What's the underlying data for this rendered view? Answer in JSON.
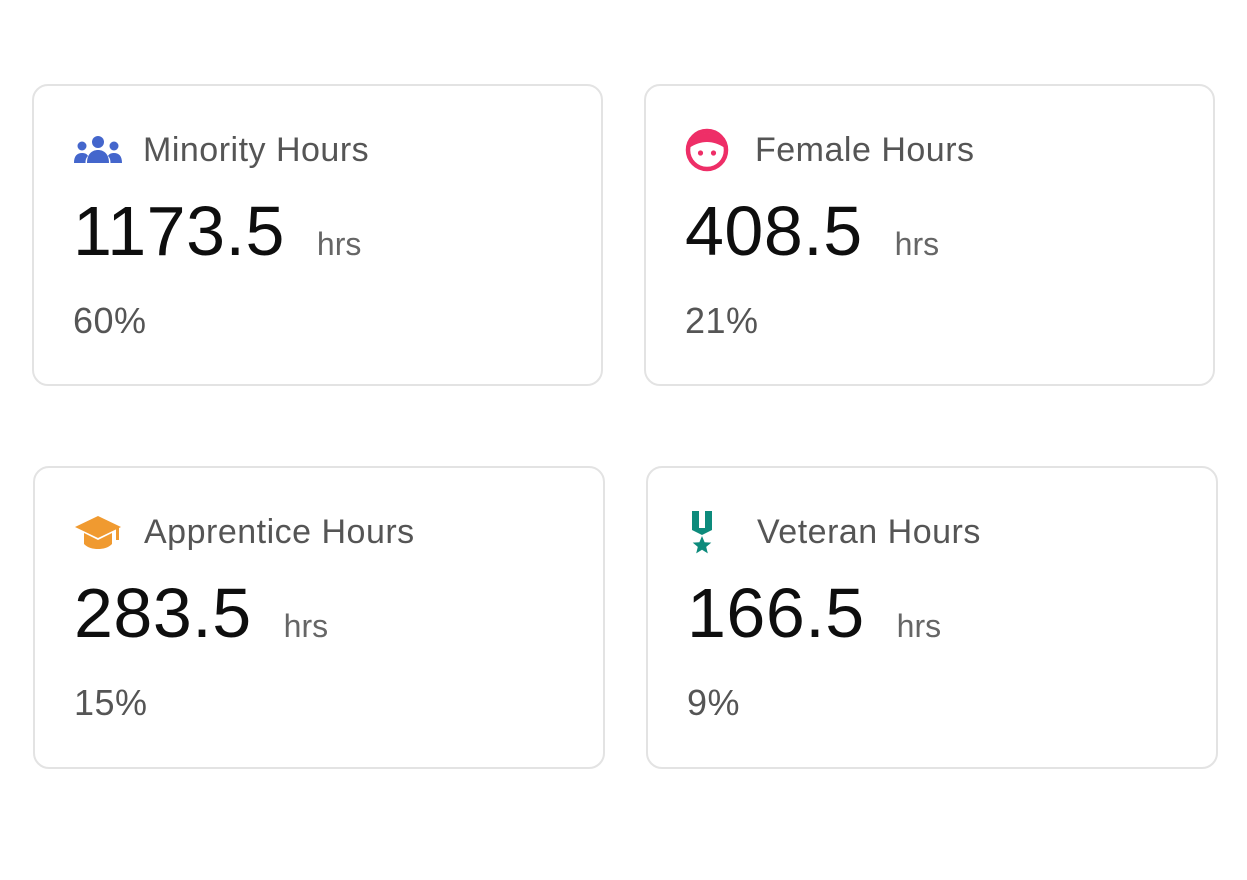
{
  "colors": {
    "minority": "#4466cc",
    "female": "#ee2e67",
    "apprentice": "#f09a30",
    "veteran": "#0d8b7c"
  },
  "cards": [
    {
      "key": "minority",
      "icon": "people-group-icon",
      "title": "Minority Hours",
      "value": "1173.5",
      "unit": "hrs",
      "percent": "60%"
    },
    {
      "key": "female",
      "icon": "female-face-icon",
      "title": "Female Hours",
      "value": "408.5",
      "unit": "hrs",
      "percent": "21%"
    },
    {
      "key": "apprentice",
      "icon": "graduation-cap-icon",
      "title": "Apprentice Hours",
      "value": "283.5",
      "unit": "hrs",
      "percent": "15%"
    },
    {
      "key": "veteran",
      "icon": "medal-icon",
      "title": "Veteran Hours",
      "value": "166.5",
      "unit": "hrs",
      "percent": "9%"
    }
  ]
}
